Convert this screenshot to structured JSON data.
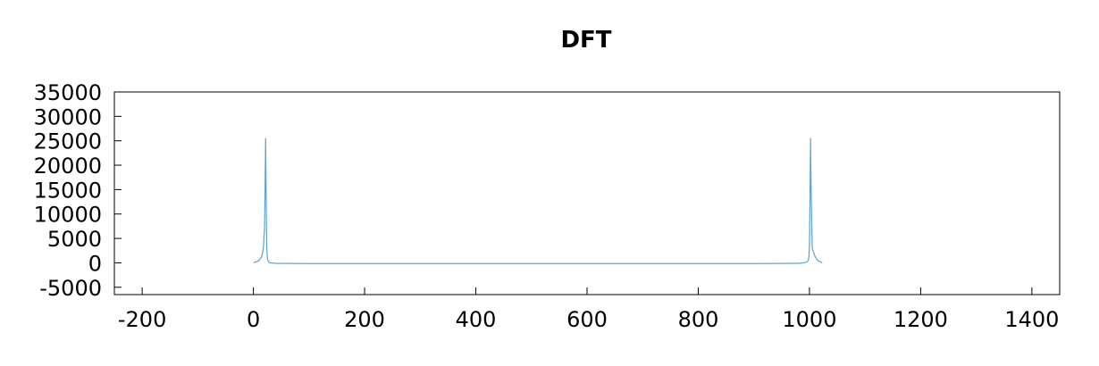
{
  "chart_data": {
    "type": "line",
    "title": "DFT",
    "xlabel": "",
    "ylabel": "",
    "xlim": [
      -250,
      1450
    ],
    "ylim": [
      -6500,
      35000
    ],
    "xticks": [
      -200,
      0,
      200,
      400,
      600,
      800,
      1000,
      1200,
      1400
    ],
    "yticks": [
      35000,
      30000,
      25000,
      20000,
      15000,
      10000,
      5000,
      0,
      -5000
    ],
    "grid": false,
    "legend": "none",
    "series": [
      {
        "color": "#5ba3d6",
        "x": [
          0,
          5,
          10,
          15,
          18,
          20,
          21,
          22,
          23,
          24,
          25,
          26,
          28,
          30,
          40,
          100,
          300,
          500,
          700,
          900,
          980,
          990,
          995,
          998,
          999,
          1000,
          1001,
          1002,
          1003,
          1005,
          1010,
          1015,
          1020,
          1023
        ],
        "y": [
          50,
          200,
          450,
          1300,
          3000,
          7000,
          15000,
          25500,
          13000,
          3500,
          1200,
          500,
          150,
          0,
          -100,
          -150,
          -150,
          -150,
          -150,
          -150,
          -100,
          0,
          150,
          500,
          1200,
          3500,
          13000,
          25500,
          15000,
          3000,
          1300,
          450,
          200,
          50
        ]
      }
    ]
  }
}
